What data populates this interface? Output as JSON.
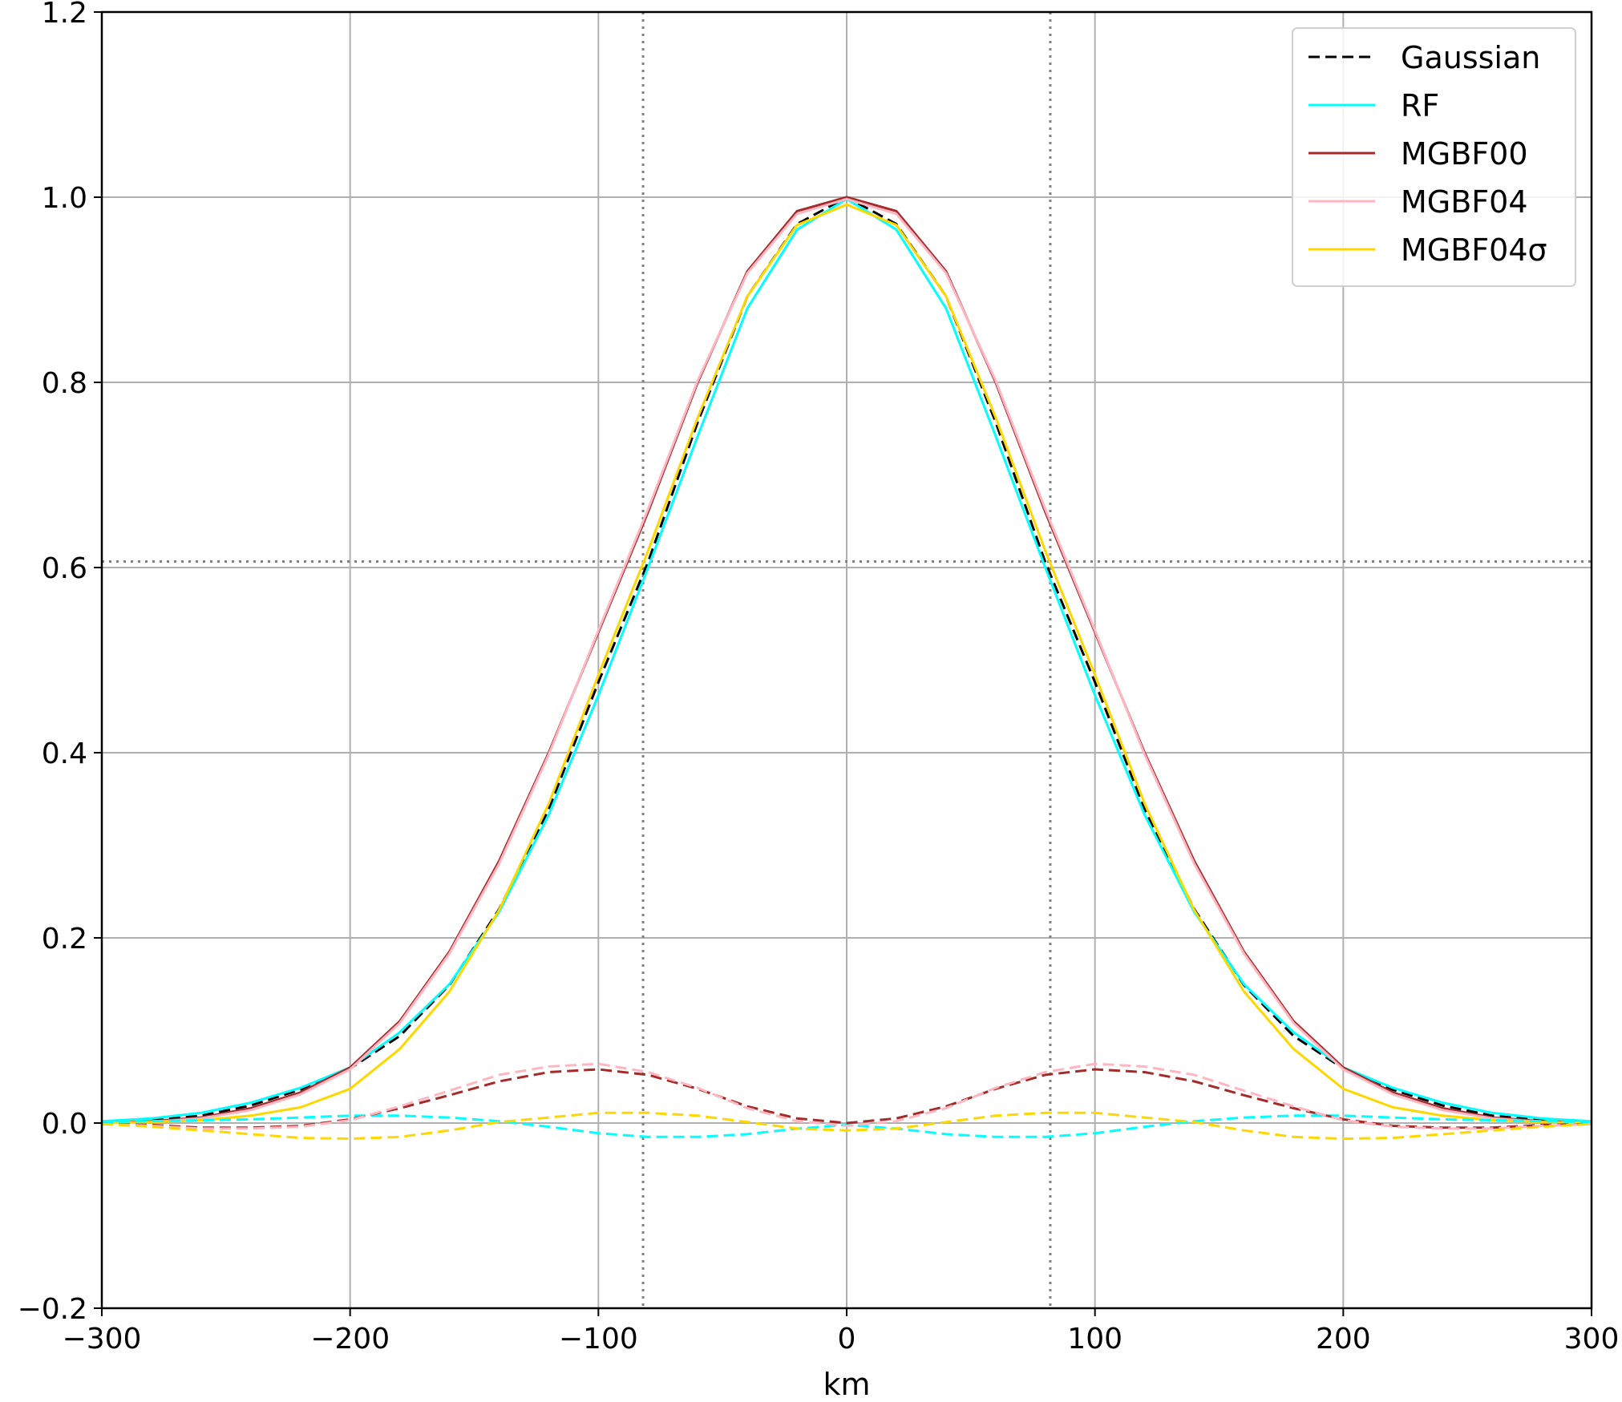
{
  "chart_data": {
    "type": "line",
    "xlabel": "km",
    "ylabel": "",
    "title": "",
    "xlim": [
      -300,
      300
    ],
    "ylim": [
      -0.2,
      1.2
    ],
    "xticks": [
      -300,
      -200,
      -100,
      0,
      100,
      200,
      300
    ],
    "xtick_labels": [
      "−300",
      "−200",
      "−100",
      "0",
      "100",
      "200",
      "300"
    ],
    "yticks": [
      -0.2,
      0.0,
      0.2,
      0.4,
      0.6,
      0.8,
      1.0,
      1.2
    ],
    "ytick_labels": [
      "−0.2",
      "0.0",
      "0.2",
      "0.4",
      "0.6",
      "0.8",
      "1.0",
      "1.2"
    ],
    "grid": true,
    "legend_position": "top-right",
    "reference_lines": {
      "horizontal_y": 0.6065,
      "vertical_x": [
        -82,
        82
      ]
    },
    "x": [
      -300,
      -280,
      -260,
      -240,
      -220,
      -200,
      -180,
      -160,
      -140,
      -120,
      -100,
      -80,
      -60,
      -40,
      -20,
      0,
      20,
      40,
      60,
      80,
      100,
      120,
      140,
      160,
      180,
      200,
      220,
      240,
      260,
      280,
      300
    ],
    "series": [
      {
        "name": "Gaussian",
        "color": "#000000",
        "dash": "dashed",
        "values": [
          0.001,
          0.003,
          0.008,
          0.019,
          0.036,
          0.059,
          0.094,
          0.149,
          0.231,
          0.339,
          0.476,
          0.606,
          0.757,
          0.893,
          0.971,
          1.0,
          0.971,
          0.893,
          0.757,
          0.606,
          0.476,
          0.339,
          0.231,
          0.149,
          0.094,
          0.059,
          0.036,
          0.019,
          0.008,
          0.003,
          0.001
        ]
      },
      {
        "name": "RF",
        "color": "#00ffff",
        "dash": "solid",
        "values": [
          0.002,
          0.005,
          0.011,
          0.022,
          0.038,
          0.06,
          0.098,
          0.15,
          0.228,
          0.333,
          0.462,
          0.6,
          0.742,
          0.88,
          0.965,
          0.998,
          0.965,
          0.88,
          0.742,
          0.6,
          0.462,
          0.333,
          0.228,
          0.15,
          0.098,
          0.06,
          0.038,
          0.022,
          0.011,
          0.005,
          0.002
        ]
      },
      {
        "name": "MGBF00",
        "color": "#a52a2a",
        "dash": "solid",
        "values": [
          0.0,
          0.002,
          0.006,
          0.016,
          0.033,
          0.06,
          0.11,
          0.185,
          0.283,
          0.4,
          0.53,
          0.66,
          0.8,
          0.92,
          0.985,
          1.0,
          0.985,
          0.92,
          0.8,
          0.66,
          0.53,
          0.4,
          0.283,
          0.185,
          0.11,
          0.06,
          0.033,
          0.016,
          0.006,
          0.002,
          0.0
        ]
      },
      {
        "name": "MGBF04",
        "color": "#ffb6c1",
        "dash": "solid",
        "values": [
          0.0,
          0.001,
          0.005,
          0.014,
          0.031,
          0.058,
          0.108,
          0.183,
          0.28,
          0.398,
          0.532,
          0.663,
          0.802,
          0.918,
          0.982,
          0.998,
          0.982,
          0.918,
          0.802,
          0.663,
          0.532,
          0.398,
          0.28,
          0.183,
          0.108,
          0.058,
          0.031,
          0.014,
          0.005,
          0.001,
          0.0
        ]
      },
      {
        "name": "MGBF04σ",
        "color": "#ffd700",
        "dash": "solid",
        "values": [
          0.0,
          0.001,
          0.003,
          0.008,
          0.017,
          0.037,
          0.08,
          0.142,
          0.23,
          0.345,
          0.484,
          0.618,
          0.762,
          0.893,
          0.97,
          0.992,
          0.97,
          0.893,
          0.762,
          0.618,
          0.484,
          0.345,
          0.23,
          0.142,
          0.08,
          0.037,
          0.017,
          0.008,
          0.003,
          0.001,
          0.0
        ]
      },
      {
        "name": "",
        "color": "#00ffff",
        "dash": "dashed",
        "values": [
          0.001,
          0.002,
          0.003,
          0.004,
          0.006,
          0.008,
          0.008,
          0.006,
          0.002,
          -0.004,
          -0.011,
          -0.015,
          -0.015,
          -0.012,
          -0.006,
          -0.002,
          -0.006,
          -0.012,
          -0.015,
          -0.015,
          -0.011,
          -0.004,
          0.002,
          0.006,
          0.008,
          0.008,
          0.006,
          0.004,
          0.003,
          0.002,
          0.001
        ]
      },
      {
        "name": "",
        "color": "#a52a2a",
        "dash": "dashed",
        "values": [
          -0.001,
          -0.002,
          -0.005,
          -0.005,
          -0.003,
          0.004,
          0.016,
          0.03,
          0.045,
          0.055,
          0.058,
          0.052,
          0.037,
          0.018,
          0.005,
          0.0,
          0.005,
          0.018,
          0.037,
          0.052,
          0.058,
          0.055,
          0.045,
          0.03,
          0.016,
          0.004,
          -0.003,
          -0.005,
          -0.005,
          -0.002,
          -0.001
        ]
      },
      {
        "name": "",
        "color": "#ffb6c1",
        "dash": "dashed",
        "values": [
          -0.001,
          -0.003,
          -0.006,
          -0.006,
          -0.004,
          0.003,
          0.018,
          0.035,
          0.052,
          0.061,
          0.064,
          0.055,
          0.038,
          0.016,
          0.002,
          -0.003,
          0.002,
          0.016,
          0.038,
          0.055,
          0.064,
          0.061,
          0.052,
          0.035,
          0.018,
          0.003,
          -0.004,
          -0.006,
          -0.006,
          -0.003,
          -0.001
        ]
      },
      {
        "name": "",
        "color": "#ffd700",
        "dash": "dashed",
        "values": [
          -0.001,
          -0.004,
          -0.008,
          -0.012,
          -0.016,
          -0.017,
          -0.015,
          -0.008,
          0.001,
          0.006,
          0.011,
          0.011,
          0.008,
          0.001,
          -0.006,
          -0.008,
          -0.006,
          0.001,
          0.008,
          0.011,
          0.011,
          0.006,
          0.001,
          -0.008,
          -0.015,
          -0.017,
          -0.016,
          -0.012,
          -0.008,
          -0.004,
          -0.001
        ]
      }
    ]
  }
}
